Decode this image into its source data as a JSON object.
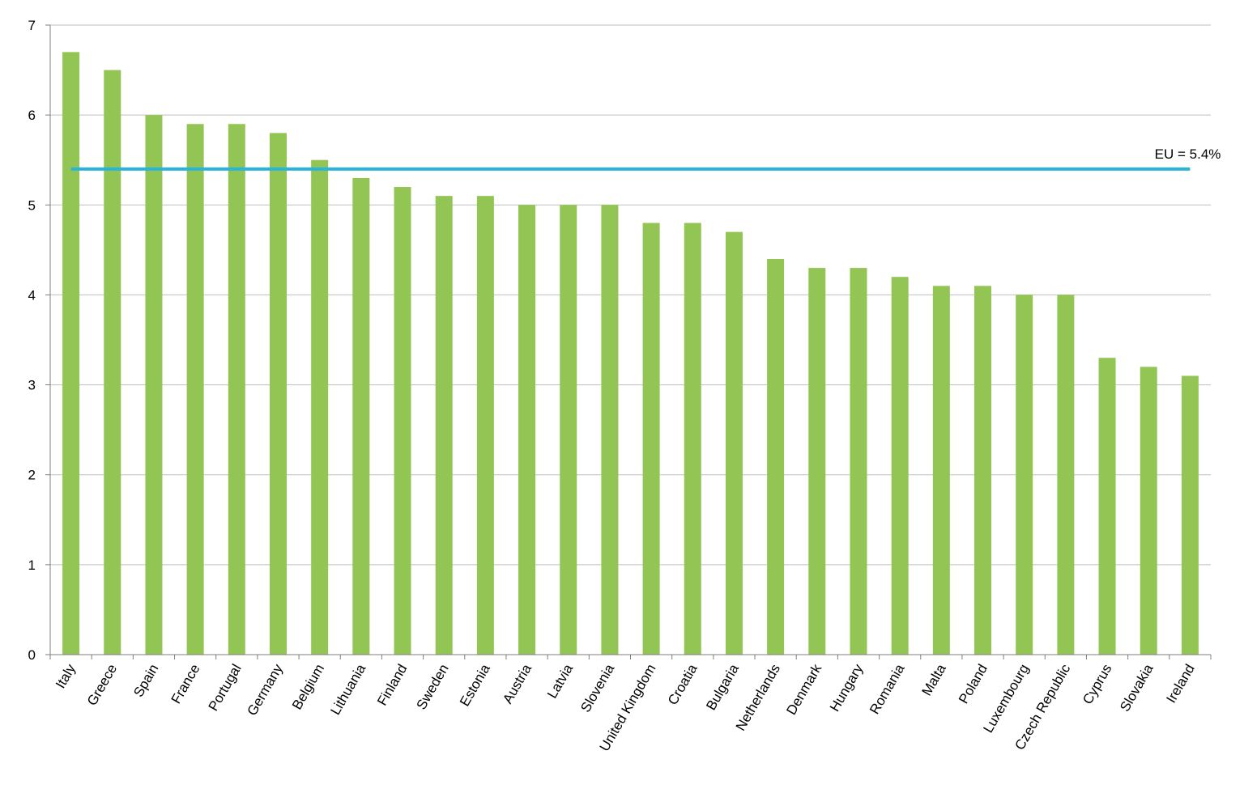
{
  "chart_data": {
    "type": "bar",
    "categories": [
      "Italy",
      "Greece",
      "Spain",
      "France",
      "Portugal",
      "Germany",
      "Belgium",
      "Lithuania",
      "Finland",
      "Sweden",
      "Estonia",
      "Austria",
      "Latvia",
      "Slovenia",
      "United Kingdom",
      "Croatia",
      "Bulgaria",
      "Netherlands",
      "Denmark",
      "Hungary",
      "Romania",
      "Malta",
      "Poland",
      "Luxembourg",
      "Czech Republic",
      "Cyprus",
      "Slovakia",
      "Ireland"
    ],
    "values": [
      6.7,
      6.5,
      6.0,
      5.9,
      5.9,
      5.8,
      5.5,
      5.3,
      5.2,
      5.1,
      5.1,
      5.0,
      5.0,
      5.0,
      4.8,
      4.8,
      4.7,
      4.4,
      4.3,
      4.3,
      4.2,
      4.1,
      4.1,
      4.0,
      4.0,
      3.3,
      3.2,
      3.1
    ],
    "ylim": [
      0,
      7
    ],
    "yticks": [
      "0",
      "1",
      "2",
      "3",
      "4",
      "5",
      "6",
      "7"
    ],
    "grid": true,
    "bar_color": "#92c553",
    "reference_line": {
      "value": 5.4,
      "label": "EU = 5.4%",
      "color": "#2bb3d9"
    }
  }
}
